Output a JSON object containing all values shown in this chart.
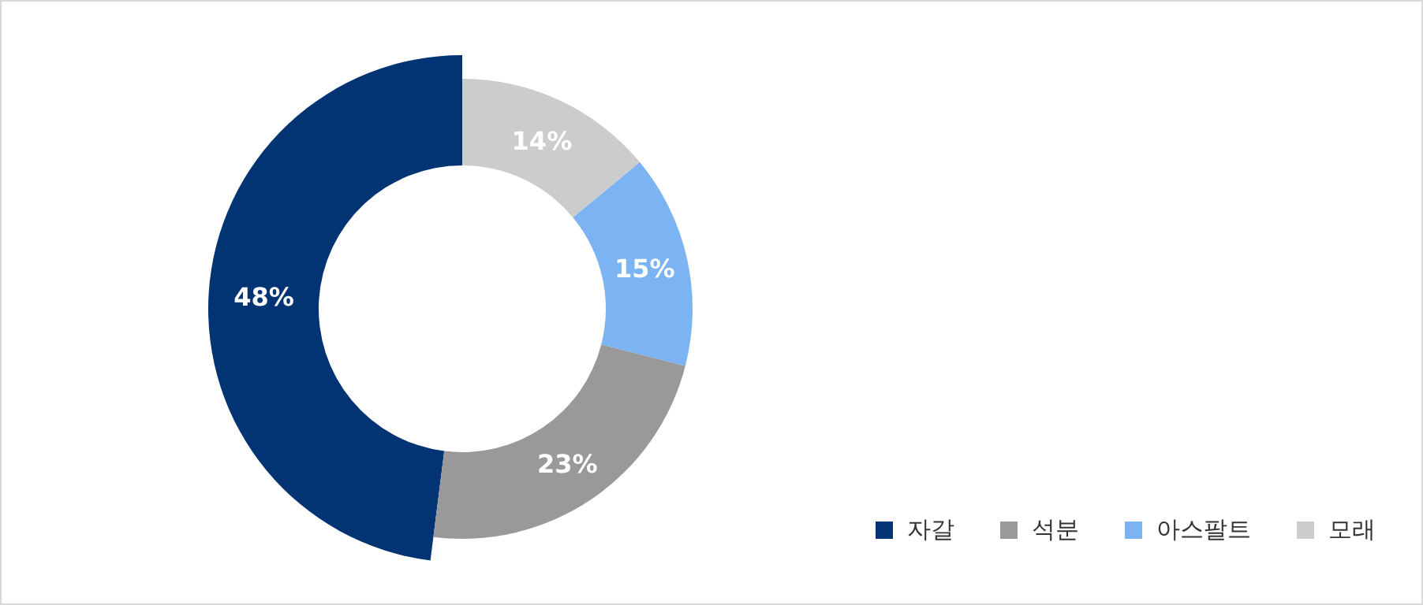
{
  "chart_data": {
    "type": "donut",
    "categories": [
      "자갈",
      "석분",
      "아스팔트",
      "모래"
    ],
    "values": [
      48,
      23,
      15,
      14
    ],
    "colors": [
      "#023474",
      "#999999",
      "#7cb3f2",
      "#cccccc"
    ],
    "value_labels": [
      "48%",
      "23%",
      "15%",
      "14%"
    ],
    "legend": "bottom right"
  }
}
